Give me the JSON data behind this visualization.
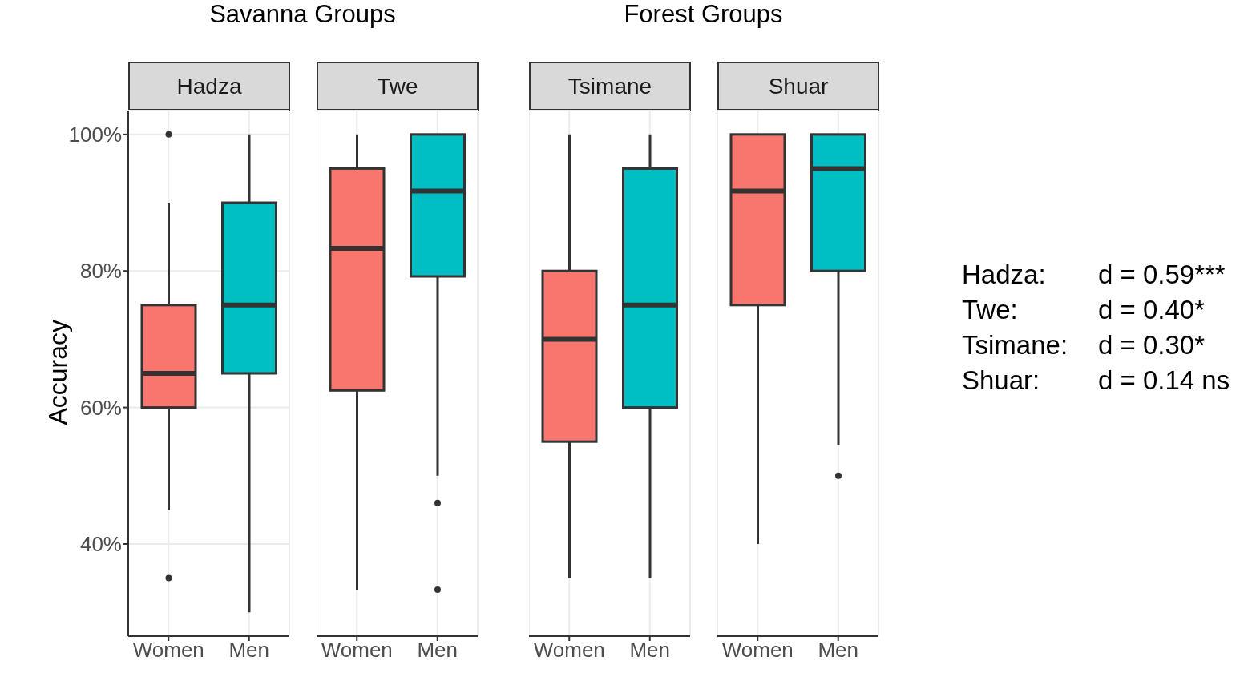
{
  "chart_data": [
    {
      "type": "box",
      "title": "Hadza",
      "ylabel": "Accuracy",
      "annotations": [
        "Savanna Groups"
      ],
      "categories": [
        "Women",
        "Men"
      ],
      "colors": [
        "#f8766d",
        "#00bfc4"
      ],
      "ylim": [
        26.5,
        103.5
      ],
      "yticks": [
        {
          "value": 40,
          "label": "40%"
        },
        {
          "value": 60,
          "label": "60%"
        },
        {
          "value": 80,
          "label": "80%"
        },
        {
          "value": 100,
          "label": "100%"
        }
      ],
      "grid": true,
      "boxes": [
        {
          "low": 45,
          "q1": 60,
          "median": 65,
          "q3": 75,
          "high": 90,
          "outliers": [
            35,
            100
          ]
        },
        {
          "low": 30,
          "q1": 65,
          "median": 75,
          "q3": 90,
          "high": 100
        }
      ]
    },
    {
      "type": "box",
      "title": "Twe",
      "categories": [
        "Women",
        "Men"
      ],
      "colors": [
        "#f8766d",
        "#00bfc4"
      ],
      "ylim": [
        26.5,
        103.5
      ],
      "yticks": [
        {
          "value": 40,
          "label": null
        },
        {
          "value": 60,
          "label": null
        },
        {
          "value": 80,
          "label": null
        },
        {
          "value": 100,
          "label": null
        }
      ],
      "grid": true,
      "tick_labels": "x",
      "boxes": [
        {
          "low": 33.3,
          "q1": 62.5,
          "median": 83.3,
          "q3": 95,
          "high": 100
        },
        {
          "low": 50,
          "q1": 79.2,
          "median": 91.7,
          "q3": 100,
          "high": 100,
          "outliers": [
            46,
            33.3
          ]
        }
      ]
    },
    {
      "type": "box",
      "title": "Tsimane",
      "annotations": [
        "Forest Groups"
      ],
      "categories": [
        "Women",
        "Men"
      ],
      "colors": [
        "#f8766d",
        "#00bfc4"
      ],
      "ylim": [
        26.5,
        103.5
      ],
      "yticks": [
        {
          "value": 40,
          "label": null
        },
        {
          "value": 60,
          "label": null
        },
        {
          "value": 80,
          "label": null
        },
        {
          "value": 100,
          "label": null
        }
      ],
      "grid": true,
      "tick_labels": "x",
      "boxes": [
        {
          "low": 35,
          "q1": 55,
          "median": 70,
          "q3": 80,
          "high": 100
        },
        {
          "low": 35,
          "q1": 60,
          "median": 75,
          "q3": 95,
          "high": 100
        }
      ]
    },
    {
      "type": "box",
      "title": "Shuar",
      "categories": [
        "Women",
        "Men"
      ],
      "colors": [
        "#f8766d",
        "#00bfc4"
      ],
      "ylim": [
        26.5,
        103.5
      ],
      "yticks": [
        {
          "value": 40,
          "label": null
        },
        {
          "value": 60,
          "label": null
        },
        {
          "value": 80,
          "label": null
        },
        {
          "value": 100,
          "label": null
        }
      ],
      "grid": true,
      "tick_labels": "x",
      "boxes": [
        {
          "low": 40,
          "q1": 75,
          "median": 91.7,
          "q3": 100,
          "high": 100
        },
        {
          "low": 54.5,
          "q1": 80,
          "median": 95,
          "q3": 100,
          "high": 100,
          "outliers": [
            50
          ]
        }
      ]
    },
    {
      "type": "other",
      "annotations": [
        "Hadza:",
        "d = 0.59***",
        "Twe:",
        "d = 0.40*",
        "Tsimane:",
        "d = 0.30*",
        "Shuar:",
        "d = 0.14 ns"
      ]
    }
  ]
}
